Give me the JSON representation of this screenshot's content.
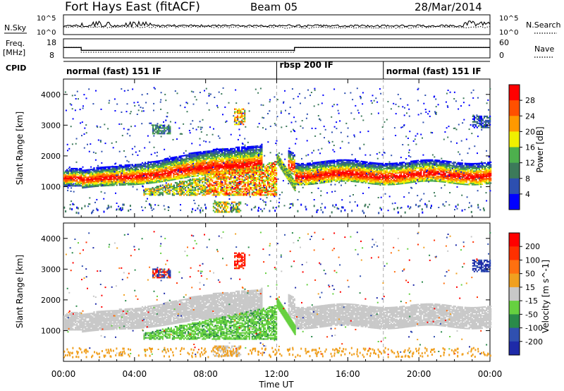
{
  "header": {
    "title": "Fort Hays East (fitACF)",
    "beam": "Beam 05",
    "date": "28/Mar/2014"
  },
  "chart_data": [
    {
      "type": "line",
      "panel": "noise",
      "ylabel_left": "N.Sky",
      "ylabel_right": "N.Search",
      "left_ticks": [
        "10^5",
        "10^0"
      ],
      "right_ticks": [
        "10^5",
        "10^0"
      ],
      "log_scale": true
    },
    {
      "type": "line",
      "panel": "frequency",
      "ylabel_left": "Freq.",
      "ylabel_left_unit": "[MHz]",
      "ylabel_right": "Nave",
      "left_ticks": [
        18,
        8
      ],
      "right_ticks": [
        60,
        0
      ],
      "freq_steps": [
        {
          "start": 0.0,
          "end": 1.0,
          "value": 10.5
        },
        {
          "start": 1.0,
          "end": 13.0,
          "value": 9.0
        },
        {
          "start": 13.0,
          "end": 24.0,
          "value": 10.5
        }
      ]
    },
    {
      "type": "table",
      "panel": "cpid",
      "label": "CPID",
      "segments": [
        {
          "start": 0.0,
          "end": 12.0,
          "name": "normal (fast) 151 IF"
        },
        {
          "start": 12.0,
          "end": 18.0,
          "name": "rbsp 200 IF"
        },
        {
          "start": 18.0,
          "end": 24.0,
          "name": "normal (fast) 151 IF"
        }
      ]
    },
    {
      "type": "heatmap",
      "panel": "power",
      "ylabel": "Slant Range [km]",
      "ylim": [
        0,
        4500
      ],
      "yticks": [
        1000,
        2000,
        3000,
        4000
      ],
      "colorbar": {
        "label": "Power [dB]",
        "ticks": [
          4,
          8,
          12,
          16,
          20,
          24,
          28
        ],
        "colors": [
          "#0000ff",
          "#2d4fb0",
          "#3c7a5a",
          "#4db04d",
          "#f0f000",
          "#ff9900",
          "#ff5000",
          "#ff0000"
        ]
      }
    },
    {
      "type": "heatmap",
      "panel": "velocity",
      "ylabel": "Slant Range [km]",
      "ylim": [
        0,
        4500
      ],
      "yticks": [
        1000,
        2000,
        3000,
        4000
      ],
      "colorbar": {
        "label": "Velocity [m s^-1]",
        "ticks": [
          "200",
          "100",
          "50",
          "15",
          "-15",
          "-50",
          "-100",
          "-200"
        ],
        "colors": [
          "#1e2aa8",
          "#3050b0",
          "#2a8a4a",
          "#66d040",
          "#c8c8c8",
          "#f0a020",
          "#ff7010",
          "#ff3000",
          "#ff0000"
        ]
      }
    }
  ],
  "xaxis": {
    "label": "Time UT",
    "xlim": [
      0,
      24
    ],
    "ticks": [
      "00:00",
      "04:00",
      "08:00",
      "12:00",
      "16:00",
      "20:00",
      "00:00"
    ],
    "tick_hours": [
      0,
      4,
      8,
      12,
      16,
      20,
      24
    ]
  }
}
